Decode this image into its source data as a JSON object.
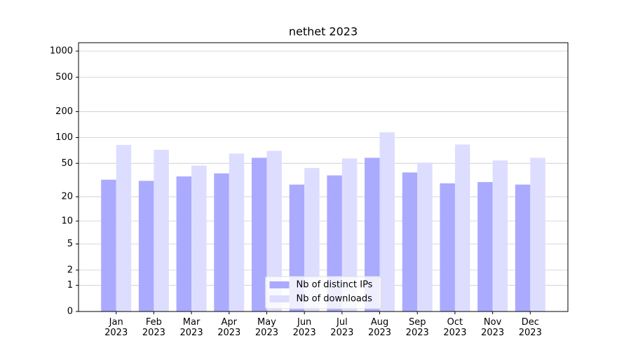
{
  "chart_data": {
    "type": "bar",
    "title": "nethet 2023",
    "categories": [
      "Jan\n2023",
      "Feb\n2023",
      "Mar\n2023",
      "Apr\n2023",
      "May\n2023",
      "Jun\n2023",
      "Jul\n2023",
      "Aug\n2023",
      "Sep\n2023",
      "Oct\n2023",
      "Nov\n2023",
      "Dec\n2023"
    ],
    "series": [
      {
        "name": "Nb of distinct IPs",
        "color": "#aaaaff",
        "values": [
          32,
          31,
          35,
          38,
          58,
          28,
          36,
          58,
          39,
          29,
          30,
          28
        ]
      },
      {
        "name": "Nb of downloads",
        "color": "#ddddff",
        "values": [
          82,
          72,
          47,
          65,
          70,
          44,
          57,
          115,
          51,
          83,
          54,
          58
        ]
      }
    ],
    "yscale": "log1p",
    "ylim": [
      0,
      1250
    ],
    "yticks": [
      0,
      1,
      2,
      5,
      10,
      20,
      50,
      100,
      200,
      500,
      1000
    ],
    "grid": true,
    "legend": "lower center"
  }
}
